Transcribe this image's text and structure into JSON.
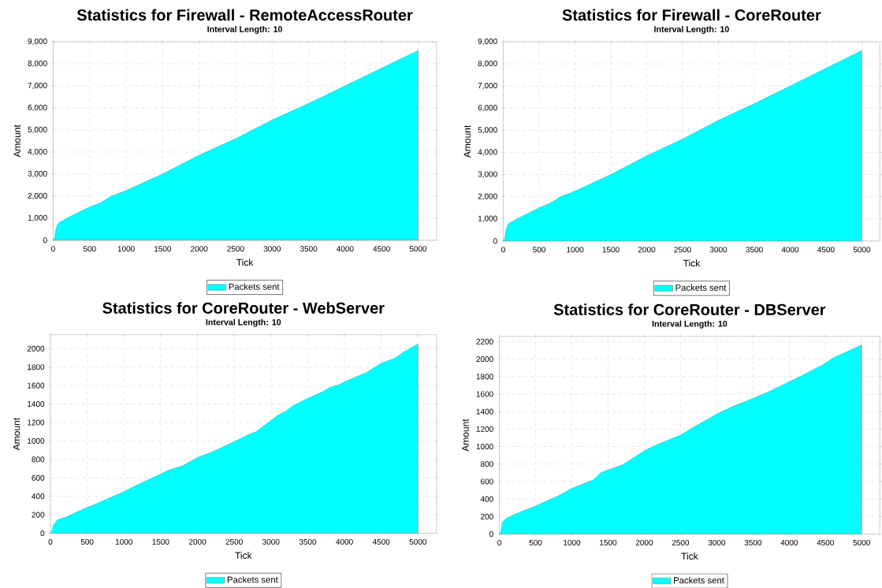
{
  "chart_data": [
    {
      "type": "area",
      "title": "Statistics for Firewall - RemoteAccessRouter",
      "subtitle": "Interval Length: 10",
      "xlabel": "Tick",
      "ylabel": "Amount",
      "grid": true,
      "legend": "bottom",
      "x": [
        0,
        20,
        40,
        60,
        80,
        250,
        500,
        650,
        800,
        1000,
        1500,
        2000,
        2100,
        2500,
        3000,
        3100,
        3500,
        4000,
        4500,
        5000
      ],
      "series": [
        {
          "name": "Packets sent",
          "color": "#00ffff",
          "values": [
            0,
            100,
            500,
            700,
            800,
            1100,
            1500,
            1700,
            2000,
            2250,
            3000,
            3850,
            4000,
            4600,
            5450,
            5600,
            6200,
            7000,
            7800,
            8600
          ]
        }
      ],
      "xlim": [
        0,
        5250
      ],
      "xticks": [
        0,
        500,
        1000,
        1500,
        2000,
        2500,
        3000,
        3500,
        4000,
        4500,
        5000
      ],
      "ylim": [
        0,
        9000
      ],
      "yticks": [
        0,
        {
          "value": 1000,
          "label": "1,000"
        },
        {
          "value": 2000,
          "label": "2,000"
        },
        {
          "value": 3000,
          "label": "3,000"
        },
        {
          "value": 4000,
          "label": "4,000"
        },
        {
          "value": 5000,
          "label": "5,000"
        },
        {
          "value": 6000,
          "label": "6,000"
        },
        {
          "value": 7000,
          "label": "7,000"
        },
        {
          "value": 8000,
          "label": "8,000"
        },
        {
          "value": 9000,
          "label": "9,000"
        }
      ]
    },
    {
      "type": "area",
      "title": "Statistics for Firewall - CoreRouter",
      "subtitle": "Interval Length: 10",
      "xlabel": "Tick",
      "ylabel": "Amount",
      "grid": true,
      "legend": "bottom",
      "x": [
        0,
        20,
        40,
        60,
        80,
        250,
        500,
        650,
        800,
        1000,
        1500,
        2000,
        2100,
        2500,
        3000,
        3100,
        3500,
        4000,
        4500,
        5000
      ],
      "series": [
        {
          "name": "Packets sent",
          "color": "#00ffff",
          "values": [
            0,
            100,
            500,
            700,
            800,
            1100,
            1500,
            1700,
            2000,
            2250,
            3000,
            3850,
            4000,
            4600,
            5450,
            5600,
            6200,
            7000,
            7800,
            8600
          ]
        }
      ],
      "xlim": [
        0,
        5250
      ],
      "xticks": [
        0,
        500,
        1000,
        1500,
        2000,
        2500,
        3000,
        3500,
        4000,
        4500,
        5000
      ],
      "ylim": [
        0,
        9000
      ],
      "yticks": [
        0,
        {
          "value": 1000,
          "label": "1,000"
        },
        {
          "value": 2000,
          "label": "2,000"
        },
        {
          "value": 3000,
          "label": "3,000"
        },
        {
          "value": 4000,
          "label": "4,000"
        },
        {
          "value": 5000,
          "label": "5,000"
        },
        {
          "value": 6000,
          "label": "6,000"
        },
        {
          "value": 7000,
          "label": "7,000"
        },
        {
          "value": 8000,
          "label": "8,000"
        },
        {
          "value": 9000,
          "label": "9,000"
        }
      ]
    },
    {
      "type": "area",
      "title": "Statistics for CoreRouter - WebServer",
      "subtitle": "Interval Length: 10",
      "xlabel": "Tick",
      "ylabel": "Amount",
      "grid": true,
      "legend": "bottom",
      "x": [
        0,
        20,
        40,
        80,
        100,
        200,
        500,
        600,
        800,
        1000,
        1200,
        1500,
        1600,
        1800,
        2000,
        2200,
        2500,
        2700,
        2800,
        3000,
        3100,
        3200,
        3300,
        3500,
        3700,
        3800,
        3900,
        4000,
        4300,
        4500,
        4700,
        4800,
        5000
      ],
      "series": [
        {
          "name": "Packets sent",
          "color": "#00ffff",
          "values": [
            0,
            20,
            80,
            130,
            145,
            170,
            280,
            310,
            380,
            450,
            530,
            640,
            680,
            730,
            820,
            880,
            990,
            1070,
            1100,
            1220,
            1280,
            1320,
            1380,
            1460,
            1530,
            1580,
            1600,
            1640,
            1740,
            1840,
            1900,
            1960,
            2050
          ]
        }
      ],
      "xlim": [
        0,
        5250
      ],
      "xticks": [
        0,
        500,
        1000,
        1500,
        2000,
        2500,
        3000,
        3500,
        4000,
        4500,
        5000
      ],
      "ylim": [
        0,
        2150
      ],
      "yticks": [
        0,
        200,
        400,
        600,
        800,
        1000,
        1200,
        1400,
        1600,
        1800,
        2000
      ]
    },
    {
      "type": "area",
      "title": "Statistics for CoreRouter - DBServer",
      "subtitle": "Interval Length: 10",
      "xlabel": "Tick",
      "ylabel": "Amount",
      "grid": true,
      "legend": "bottom",
      "x": [
        0,
        20,
        40,
        80,
        200,
        500,
        800,
        1000,
        1300,
        1400,
        1700,
        2000,
        2200,
        2500,
        2700,
        3000,
        3200,
        3500,
        3700,
        4000,
        4200,
        4500,
        4600,
        5000
      ],
      "series": [
        {
          "name": "Packets sent",
          "color": "#00ffff",
          "values": [
            0,
            20,
            130,
            170,
            220,
            320,
            430,
            520,
            620,
            700,
            790,
            950,
            1030,
            1130,
            1230,
            1370,
            1450,
            1550,
            1620,
            1740,
            1820,
            1950,
            2010,
            2160
          ]
        }
      ],
      "xlim": [
        0,
        5250
      ],
      "xticks": [
        0,
        500,
        1000,
        1500,
        2000,
        2500,
        3000,
        3500,
        4000,
        4500,
        5000
      ],
      "ylim": [
        0,
        2260
      ],
      "yticks": [
        0,
        200,
        400,
        600,
        800,
        1000,
        1200,
        1400,
        1600,
        1800,
        2000,
        2200
      ]
    }
  ]
}
